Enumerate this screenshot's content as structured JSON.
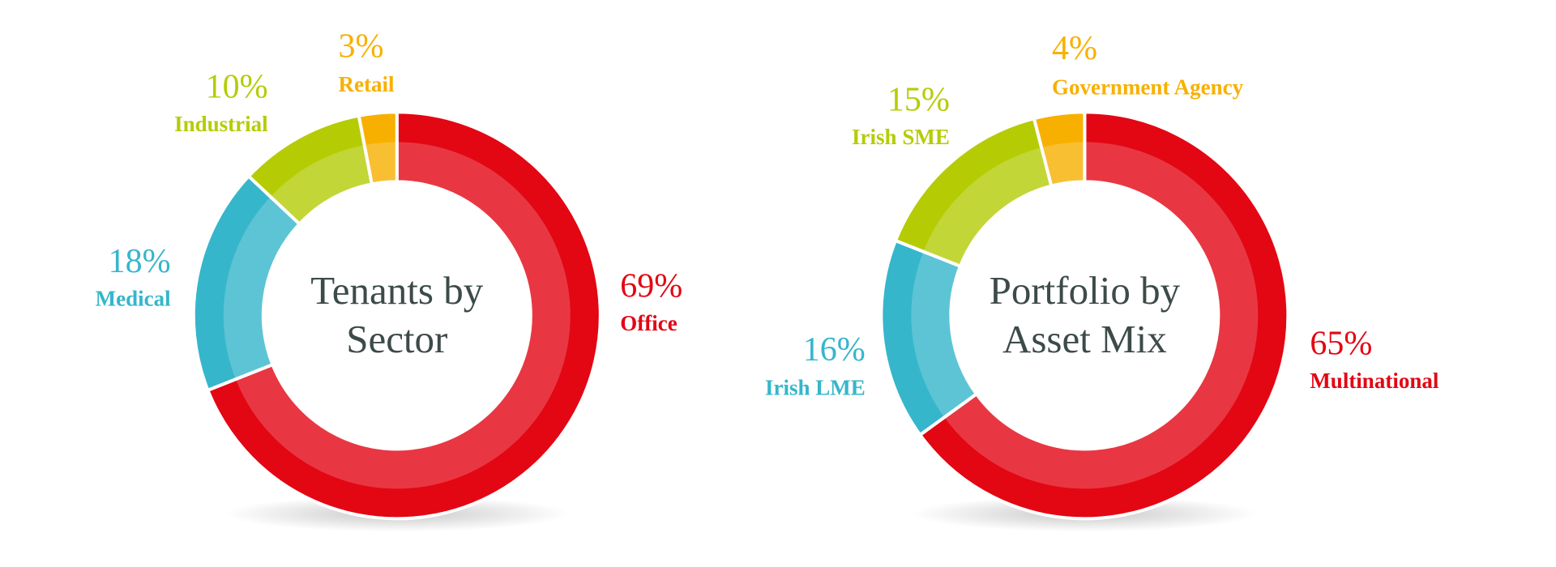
{
  "chart_data": [
    {
      "type": "pie",
      "title": "Tenants by Sector",
      "categories": [
        "Office",
        "Medical",
        "Industrial",
        "Retail"
      ],
      "values": [
        69,
        18,
        10,
        3
      ],
      "value_labels": [
        "69%",
        "18%",
        "10%",
        "3%"
      ],
      "colors": [
        "#e30613",
        "#35b6cb",
        "#b5cc05",
        "#f8b000"
      ]
    },
    {
      "type": "pie",
      "title": "Portfolio by Asset Mix",
      "categories": [
        "Multinational",
        "Irish LME",
        "Irish SME",
        "Government Agency"
      ],
      "values": [
        65,
        16,
        15,
        4
      ],
      "value_labels": [
        "65%",
        "16%",
        "15%",
        "4%"
      ],
      "colors": [
        "#e30613",
        "#35b6cb",
        "#b5cc05",
        "#f8b000"
      ]
    }
  ]
}
